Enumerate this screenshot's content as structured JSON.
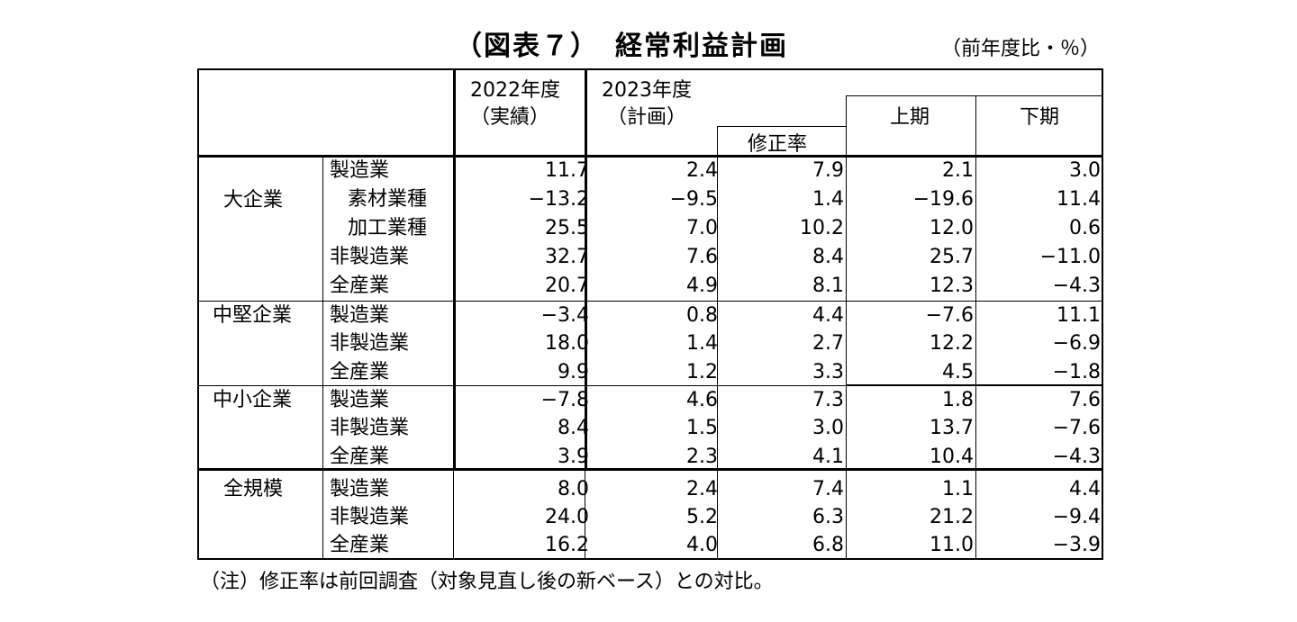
{
  "title": {
    "prefix": "（図表７）",
    "main": "経常利益計画",
    "unit": "（前年度比・％）"
  },
  "header": {
    "col_2022_year": "2022年度",
    "col_2022_sub": "（実績）",
    "col_2023_year": "2023年度",
    "col_2023_sub": "（計画）",
    "col_rev": "修正率",
    "col_h1": "上期",
    "col_h2": "下期"
  },
  "rows": [
    {
      "group": "大企業",
      "label": "製造業",
      "indent": false,
      "v": [
        "11.7",
        "2.4",
        "7.9",
        "2.1",
        "3.0"
      ]
    },
    {
      "group": "",
      "label": "素材業種",
      "indent": true,
      "v": [
        "−13.2",
        "−9.5",
        "1.4",
        "−19.6",
        "11.4"
      ]
    },
    {
      "group": "",
      "label": "加工業種",
      "indent": true,
      "v": [
        "25.5",
        "7.0",
        "10.2",
        "12.0",
        "0.6"
      ]
    },
    {
      "group": "",
      "label": "非製造業",
      "indent": false,
      "v": [
        "32.7",
        "7.6",
        "8.4",
        "25.7",
        "−11.0"
      ]
    },
    {
      "group": "",
      "label": "全産業",
      "indent": false,
      "v": [
        "20.7",
        "4.9",
        "8.1",
        "12.3",
        "−4.3"
      ]
    },
    {
      "group": "中堅企業",
      "label": "製造業",
      "indent": false,
      "v": [
        "−3.4",
        "0.8",
        "4.4",
        "−7.6",
        "11.1"
      ]
    },
    {
      "group": "",
      "label": "非製造業",
      "indent": false,
      "v": [
        "18.0",
        "1.4",
        "2.7",
        "12.2",
        "−6.9"
      ]
    },
    {
      "group": "",
      "label": "全産業",
      "indent": false,
      "v": [
        "9.9",
        "1.2",
        "3.3",
        "4.5",
        "−1.8"
      ]
    },
    {
      "group": "中小企業",
      "label": "製造業",
      "indent": false,
      "v": [
        "−7.8",
        "4.6",
        "7.3",
        "1.8",
        "7.6"
      ]
    },
    {
      "group": "",
      "label": "非製造業",
      "indent": false,
      "v": [
        "8.4",
        "1.5",
        "3.0",
        "13.7",
        "−7.6"
      ]
    },
    {
      "group": "",
      "label": "全産業",
      "indent": false,
      "v": [
        "3.9",
        "2.3",
        "4.1",
        "10.4",
        "−4.3"
      ]
    },
    {
      "group": "全規模",
      "label": "製造業",
      "indent": false,
      "v": [
        "8.0",
        "2.4",
        "7.4",
        "1.1",
        "4.4"
      ]
    },
    {
      "group": "",
      "label": "非製造業",
      "indent": false,
      "v": [
        "24.0",
        "5.2",
        "6.3",
        "21.2",
        "−9.4"
      ]
    },
    {
      "group": "",
      "label": "全産業",
      "indent": false,
      "v": [
        "16.2",
        "4.0",
        "6.8",
        "11.0",
        "−3.9"
      ]
    }
  ],
  "note": "（注）修正率は前回調査（対象見直し後の新ベース）との対比。"
}
